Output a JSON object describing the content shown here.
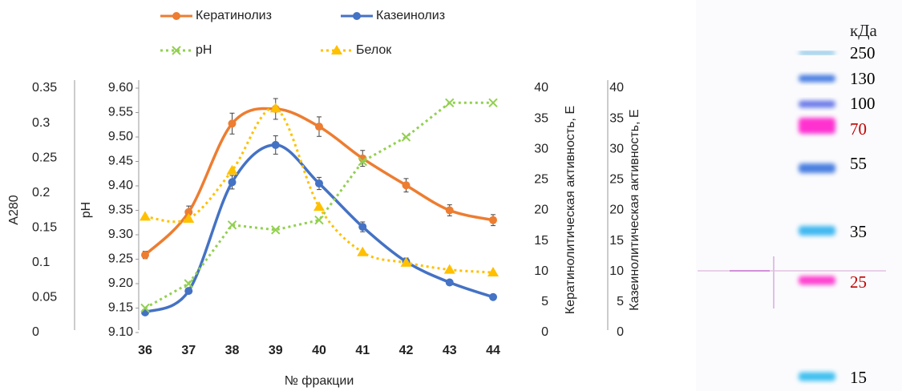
{
  "chart_data": {
    "type": "line",
    "xlabel": "№ фракции",
    "categories": [
      36,
      37,
      38,
      39,
      40,
      41,
      42,
      43,
      44
    ],
    "ylabel": "A280",
    "ylim": [
      0,
      0.35
    ],
    "yticks": [
      0,
      0.05,
      0.1,
      0.15,
      0.2,
      0.25,
      0.3,
      0.35
    ],
    "y2label": "pH",
    "y2lim": [
      9.1,
      9.6
    ],
    "y2ticks": [
      {
        "value": 9.1,
        "label": "9.10"
      },
      9.15,
      {
        "value": 9.2,
        "label": "9.20"
      },
      9.25,
      {
        "value": 9.3,
        "label": "9.30"
      },
      9.35,
      {
        "value": 9.4,
        "label": "9.40"
      },
      9.45,
      {
        "value": 9.5,
        "label": "9.50"
      },
      9.55,
      {
        "value": 9.6,
        "label": "9.60"
      }
    ],
    "y3label": "Кератинолитическая активность, Е",
    "y3lim": [
      0,
      40
    ],
    "y3ticks": [
      0,
      5,
      10,
      15,
      20,
      25,
      30,
      35,
      40
    ],
    "y4label": "Казеинолитическая активность, Е",
    "y4lim": [
      0,
      40
    ],
    "y4ticks": [
      0,
      5,
      10,
      15,
      20,
      25,
      30,
      35,
      40
    ],
    "series": [
      {
        "name": "Кератинолиз",
        "color": "#ed7d31",
        "axis": "y3",
        "marker": "circle",
        "dashed": false,
        "smooth": true,
        "values": [
          12.7,
          19.7,
          34.2,
          36.6,
          33.7,
          28.5,
          24.1,
          20.0,
          18.4
        ],
        "errors": [
          0.6,
          1.0,
          1.7,
          1.7,
          1.6,
          1.3,
          1.1,
          0.9,
          0.9
        ]
      },
      {
        "name": "Казеинолиз",
        "color": "#4472c4",
        "axis": "y4",
        "marker": "circle",
        "dashed": false,
        "smooth": true,
        "values": [
          3.3,
          6.8,
          24.6,
          30.7,
          24.4,
          17.3,
          11.6,
          8.2,
          5.8
        ],
        "errors": [
          0.3,
          0.4,
          1.1,
          1.5,
          1.0,
          0.8,
          0.6,
          0.4,
          0.4
        ]
      },
      {
        "name": "pH",
        "color": "#92d050",
        "axis": "y2",
        "marker": "x",
        "dashed": true,
        "smooth": false,
        "values": [
          9.15,
          9.2,
          9.32,
          9.31,
          9.33,
          9.45,
          9.5,
          9.57,
          9.57
        ]
      },
      {
        "name": "Белок",
        "color": "#ffc000",
        "axis": "y",
        "marker": "triangle",
        "dashed": true,
        "smooth": true,
        "values": [
          0.166,
          0.163,
          0.232,
          0.321,
          0.18,
          0.115,
          0.1,
          0.09,
          0.086
        ]
      }
    ]
  },
  "gel": {
    "unit_label": "кДа",
    "markers": [
      {
        "label": "250",
        "color": "#000000"
      },
      {
        "label": "130",
        "color": "#000000"
      },
      {
        "label": "100",
        "color": "#000000"
      },
      {
        "label": "70",
        "color": "#c00000"
      },
      {
        "label": "55",
        "color": "#000000"
      },
      {
        "label": "35",
        "color": "#000000"
      },
      {
        "label": "25",
        "color": "#c00000"
      },
      {
        "label": "15",
        "color": "#000000"
      }
    ]
  }
}
